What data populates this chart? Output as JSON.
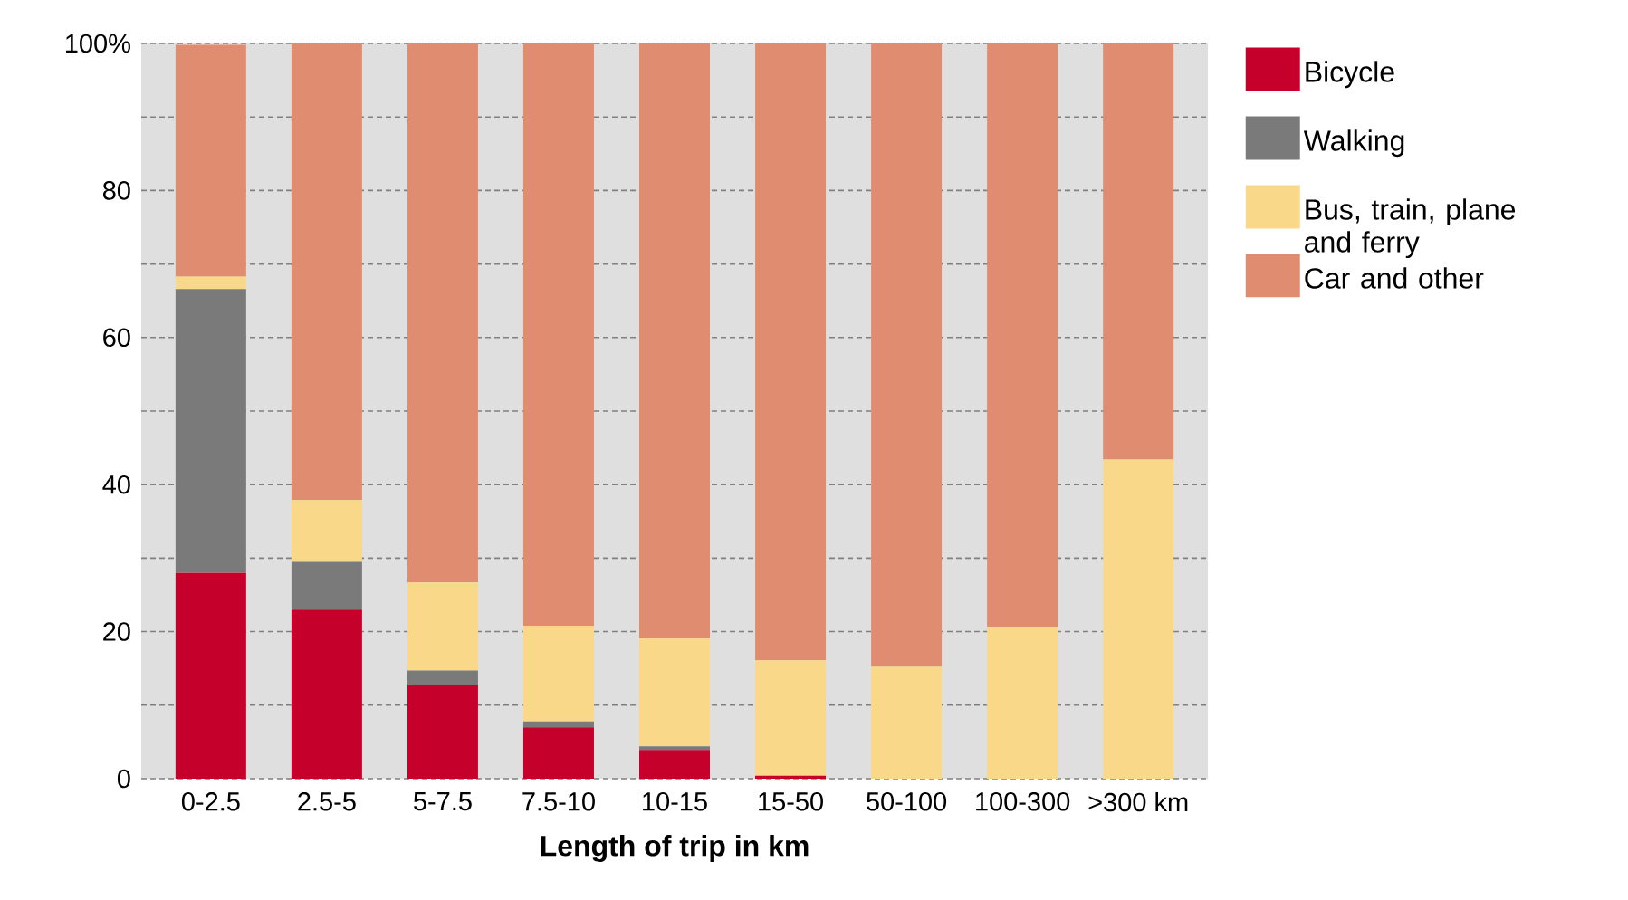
{
  "chart_data": {
    "type": "bar",
    "stacked": true,
    "xlabel": "Length of trip in km",
    "categories": [
      "0-2.5",
      "2.5-5",
      "5-7.5",
      "7.5-10",
      "10-15",
      "15-50",
      "50-100",
      "100-300",
      ">300 km"
    ],
    "series": [
      {
        "name": "Bicycle",
        "color": "#c4002b",
        "values": [
          28,
          23,
          12.7,
          7,
          3.9,
          0.4,
          0,
          0,
          0
        ]
      },
      {
        "name": "Walking",
        "color": "#7a7a7a",
        "values": [
          38.6,
          6.5,
          2,
          0.8,
          0.5,
          0,
          0,
          0,
          0
        ]
      },
      {
        "name": "Bus, train, plane and ferry",
        "color": "#fad88a",
        "values": [
          1.7,
          8.4,
          12,
          13,
          14.7,
          15.7,
          15.2,
          20.6,
          43.4
        ]
      },
      {
        "name": "Car and other",
        "color": "#e08c70",
        "values": [
          31.5,
          62.1,
          73.3,
          79.2,
          80.9,
          83.9,
          84.8,
          79.4,
          56.6
        ]
      }
    ],
    "ylim": [
      0,
      100
    ],
    "yticks": [
      0,
      {
        "value": 10,
        "label": null
      },
      20,
      {
        "value": 30,
        "label": null
      },
      40,
      {
        "value": 50,
        "label": null
      },
      60,
      {
        "value": 70,
        "label": null
      },
      80,
      {
        "value": 90,
        "label": null
      },
      {
        "value": 100,
        "label": "100%"
      }
    ],
    "grid": "y",
    "legend": "right"
  }
}
